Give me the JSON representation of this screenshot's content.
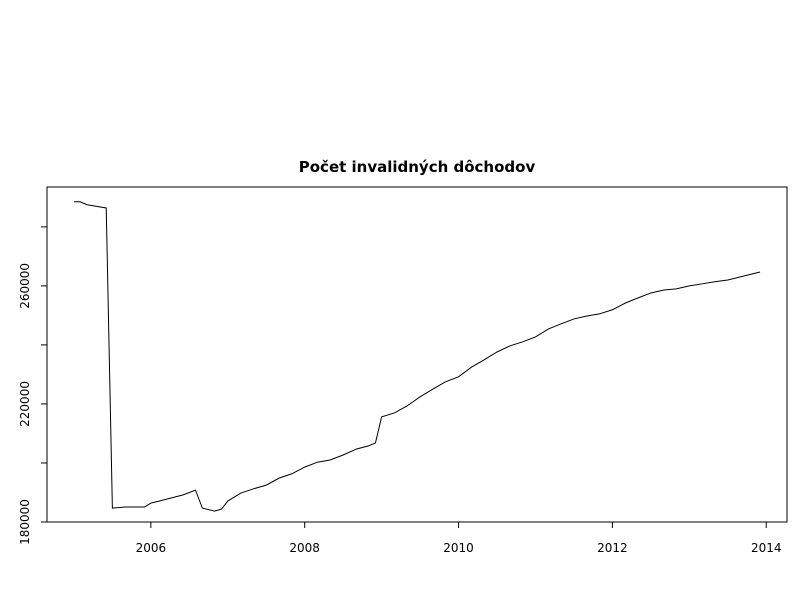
{
  "chart_data": {
    "type": "line",
    "title": "Počet invalidných dôchodov",
    "x": [
      2005.0,
      2005.08,
      2005.17,
      2005.42,
      2005.5,
      2005.67,
      2005.92,
      2006.0,
      2006.17,
      2006.42,
      2006.58,
      2006.67,
      2006.83,
      2006.92,
      2007.0,
      2007.17,
      2007.33,
      2007.5,
      2007.67,
      2007.83,
      2008.0,
      2008.17,
      2008.33,
      2008.5,
      2008.67,
      2008.83,
      2008.92,
      2009.0,
      2009.17,
      2009.33,
      2009.5,
      2009.67,
      2009.83,
      2010.0,
      2010.17,
      2010.33,
      2010.5,
      2010.67,
      2010.83,
      2011.0,
      2011.17,
      2011.33,
      2011.5,
      2011.67,
      2011.83,
      2012.0,
      2012.17,
      2012.33,
      2012.5,
      2012.67,
      2012.83,
      2013.0,
      2013.17,
      2013.33,
      2013.5,
      2013.67,
      2013.92
    ],
    "values": [
      288500,
      288500,
      287500,
      286400,
      184700,
      185100,
      185100,
      186400,
      187500,
      189200,
      190800,
      184700,
      183700,
      184400,
      187100,
      189800,
      191200,
      192500,
      194900,
      196300,
      198600,
      200300,
      201000,
      202700,
      204700,
      205800,
      206800,
      215600,
      217000,
      219300,
      222400,
      225100,
      227500,
      229200,
      232500,
      234900,
      237600,
      239700,
      241000,
      242700,
      245400,
      247100,
      248800,
      249800,
      250500,
      251900,
      254200,
      255900,
      257600,
      258600,
      259000,
      260000,
      260700,
      261400,
      262000,
      263100,
      264700
    ],
    "color": "#000000",
    "xlim": [
      2004.65,
      2014.27
    ],
    "xticks": [
      2006,
      2008,
      2010,
      2012,
      2014
    ],
    "ylim": [
      180000,
      293500
    ],
    "yticks": [
      180000,
      {
        "value": 200000,
        "label": null
      },
      220000,
      {
        "value": 240000,
        "label": null
      },
      260000,
      {
        "value": 280000,
        "label": null
      }
    ]
  }
}
